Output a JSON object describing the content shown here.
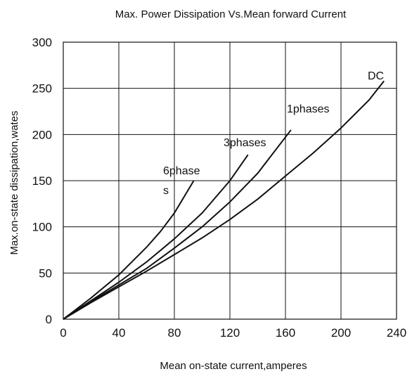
{
  "chart_data": {
    "type": "line",
    "title": "Max. Power  Dissipation  Vs.Mean forward  Current",
    "xlabel": "Mean on-state current,amperes",
    "ylabel": "Max.on-state dissipation,wates",
    "xlim": [
      0,
      240
    ],
    "ylim": [
      0,
      300
    ],
    "xticks": [
      "0",
      "40",
      "80",
      "120",
      "160",
      "200",
      "240"
    ],
    "yticks": [
      "0",
      "50",
      "100",
      "150",
      "200",
      "250",
      "300"
    ],
    "grid": true,
    "series": [
      {
        "name": "6phases",
        "annotation_lines": [
          "6phase",
          "s"
        ],
        "x": [
          0,
          20,
          40,
          60,
          70,
          80,
          94
        ],
        "y": [
          0,
          23,
          48,
          78,
          95,
          115,
          150
        ]
      },
      {
        "name": "3phases",
        "annotation_lines": [
          "3phases"
        ],
        "x": [
          0,
          20,
          40,
          60,
          80,
          100,
          120,
          133
        ],
        "y": [
          0,
          20,
          40,
          62,
          87,
          115,
          150,
          178
        ]
      },
      {
        "name": "1phases",
        "annotation_lines": [
          "1phases"
        ],
        "x": [
          0,
          20,
          40,
          60,
          80,
          100,
          120,
          140,
          164
        ],
        "y": [
          0,
          19,
          37,
          55,
          77,
          100,
          127,
          158,
          205
        ]
      },
      {
        "name": "DC",
        "annotation_lines": [
          "DC"
        ],
        "x": [
          0,
          20,
          40,
          60,
          80,
          100,
          120,
          140,
          160,
          180,
          200,
          220,
          231
        ],
        "y": [
          0,
          18,
          35,
          52,
          70,
          88,
          108,
          130,
          155,
          180,
          207,
          237,
          258
        ]
      }
    ]
  }
}
